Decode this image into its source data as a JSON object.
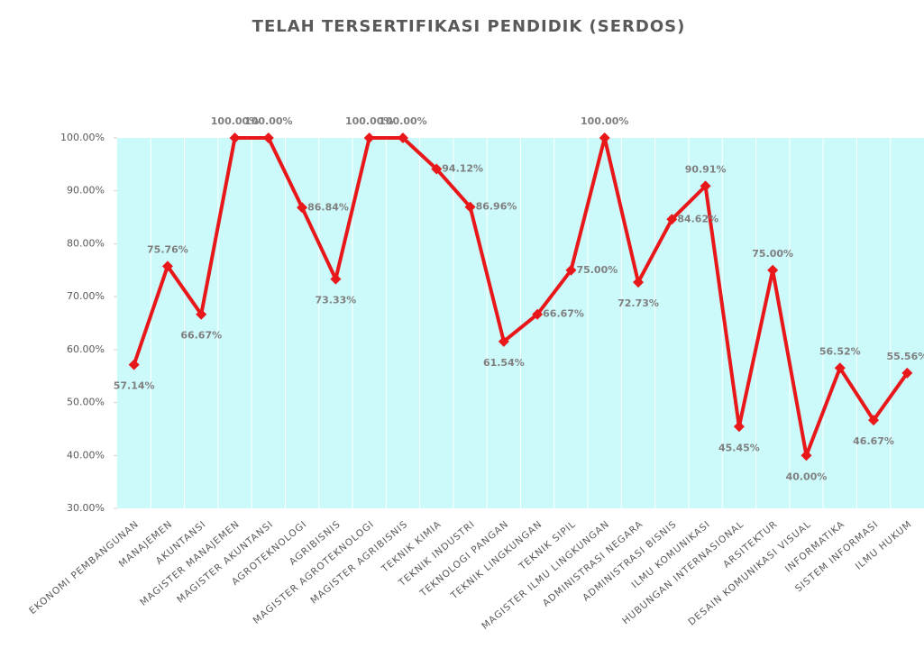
{
  "chart_data": {
    "type": "line",
    "title": "TELAH TERSERTIFIKASI PENDIDIK (SERDOS)",
    "categories": [
      "EKONOMI PEMBANGUNAN",
      "MANAJEMEN",
      "AKUNTANSI",
      "MAGISTER MANAJEMEN",
      "MAGISTER AKUNTANSI",
      "AGROTEKNOLOGI",
      "AGRIBISNIS",
      "MAGISTER AGROTEKNOLOGI",
      "MAGISTER AGRIBISNIS",
      "TEKNIK KIMIA",
      "TEKNIK INDUSTRI",
      "TEKNOLOGI PANGAN",
      "TEKNIK LINGKUNGAN",
      "TEKNIK SIPIL",
      "MAGISTER ILMU LINGKUNGAN",
      "ADMINISTRASI NEGARA",
      "ADMINISTRASI BISNIS",
      "ILMU KOMUNIKASI",
      "HUBUNGAN INTERNASIONAL",
      "ARSITEKTUR",
      "DESAIN KOMUNIKASI VISUAL",
      "INFORMATIKA",
      "SISTEM INFORMASI",
      "ILMU HUKUM"
    ],
    "values": [
      57.14,
      75.76,
      66.67,
      100,
      100,
      86.84,
      73.33,
      100,
      100,
      94.12,
      86.96,
      61.54,
      66.67,
      75,
      100,
      72.73,
      84.62,
      90.91,
      45.45,
      75,
      40,
      56.52,
      46.67,
      55.56
    ],
    "value_labels": [
      "57.14%",
      "75.76%",
      "66.67%",
      "100.00%",
      "100.00%",
      "86.84%",
      "73.33%",
      "100.00%",
      "100.00%",
      "94.12%",
      "86.96%",
      "61.54%",
      "66.67%",
      "75.00%",
      "100.00%",
      "72.73%",
      "84.62%",
      "90.91%",
      "45.45%",
      "75.00%",
      "40.00%",
      "56.52%",
      "46.67%",
      "55.56%"
    ],
    "color": "#e8171a",
    "plot_background": "#ccfafa",
    "ylim": [
      30,
      100
    ],
    "yticks": [
      {
        "value": 30,
        "label": "30.00%"
      },
      {
        "value": 40,
        "label": "40.00%"
      },
      {
        "value": 50,
        "label": "50.00%"
      },
      {
        "value": 60,
        "label": "60.00%"
      },
      {
        "value": 70,
        "label": "70.00%"
      },
      {
        "value": 80,
        "label": "80.00%"
      },
      {
        "value": 90,
        "label": "90.00%"
      },
      {
        "value": 100,
        "label": "100.00%"
      }
    ]
  }
}
